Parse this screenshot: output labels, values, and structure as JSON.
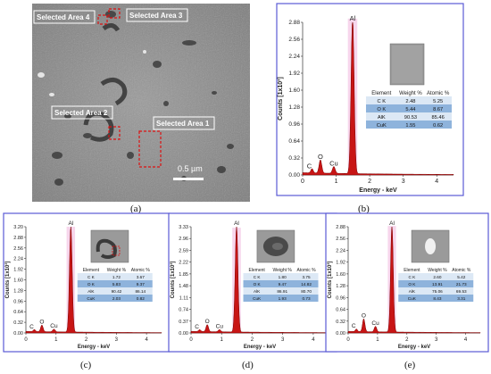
{
  "figure": {
    "labels": [
      "(a)",
      "(b)",
      "(c)",
      "(d)",
      "(e)"
    ]
  },
  "sem": {
    "areas": [
      "Selected Area 4",
      "Selected Area 3",
      "Selected Area 2",
      "Selected Area 1"
    ],
    "scale_label": "0.5 µm"
  },
  "spectra_common": {
    "xlabel": "Energy - keV",
    "ylabel": "Counts [1x10³]",
    "table_headers": [
      "Element",
      "Weight %",
      "Atomic %"
    ],
    "peak_labels": [
      "C",
      "O",
      "Cu",
      "Al"
    ]
  },
  "chart_data": [
    {
      "type": "area",
      "panel": "(b)",
      "ylim": [
        0,
        2.88
      ],
      "yticks": [
        "0.00",
        "0.32",
        "0.64",
        "0.96",
        "1.28",
        "1.60",
        "1.92",
        "2.24",
        "2.56",
        "2.88"
      ],
      "xlim": [
        0,
        4.5
      ],
      "xticks": [
        "0",
        "1",
        "2",
        "3",
        "4"
      ],
      "peaks": [
        {
          "label": "C",
          "x": 0.28,
          "y": 0.08
        },
        {
          "label": "O",
          "x": 0.53,
          "y": 0.25
        },
        {
          "label": "Cu",
          "x": 0.93,
          "y": 0.13
        },
        {
          "label": "Al",
          "x": 1.49,
          "y": 2.95
        }
      ],
      "table": [
        [
          "C K",
          "2.48",
          "5.25"
        ],
        [
          "O K",
          "5.44",
          "8.67"
        ],
        [
          "AlK",
          "90.53",
          "85.46"
        ],
        [
          "CuK",
          "1.55",
          "0.62"
        ]
      ]
    },
    {
      "type": "area",
      "panel": "(c)",
      "ylim": [
        0,
        3.2
      ],
      "yticks": [
        "0.00",
        "0.32",
        "0.64",
        "0.96",
        "1.28",
        "1.60",
        "1.92",
        "2.24",
        "2.56",
        "2.88",
        "3.20"
      ],
      "xlim": [
        0,
        4.5
      ],
      "xticks": [
        "0",
        "1",
        "2",
        "3",
        "4"
      ],
      "peaks": [
        {
          "label": "C",
          "x": 0.28,
          "y": 0.06
        },
        {
          "label": "O",
          "x": 0.53,
          "y": 0.2
        },
        {
          "label": "Cu",
          "x": 0.93,
          "y": 0.08
        },
        {
          "label": "Al",
          "x": 1.49,
          "y": 3.2
        }
      ],
      "table": [
        [
          "C K",
          "1.72",
          "3.67"
        ],
        [
          "O K",
          "5.83",
          "9.37"
        ],
        [
          "AlK",
          "90.42",
          "86.14"
        ],
        [
          "CuK",
          "2.03",
          "0.82"
        ]
      ]
    },
    {
      "type": "area",
      "panel": "(d)",
      "ylim": [
        0,
        3.33
      ],
      "yticks": [
        "0.00",
        "0.37",
        "0.74",
        "1.11",
        "1.48",
        "1.85",
        "2.22",
        "2.59",
        "2.96",
        "3.33"
      ],
      "xlim": [
        0,
        4.5
      ],
      "xticks": [
        "0",
        "1",
        "2",
        "3",
        "4"
      ],
      "peaks": [
        {
          "label": "C",
          "x": 0.28,
          "y": 0.06
        },
        {
          "label": "O",
          "x": 0.53,
          "y": 0.22
        },
        {
          "label": "Cu",
          "x": 0.93,
          "y": 0.07
        },
        {
          "label": "Al",
          "x": 1.49,
          "y": 3.3
        }
      ],
      "table": [
        [
          "C K",
          "1.80",
          "3.75"
        ],
        [
          "O K",
          "9.47",
          "14.82"
        ],
        [
          "AlK",
          "86.91",
          "80.70"
        ],
        [
          "CuK",
          "1.93",
          "0.73"
        ]
      ]
    },
    {
      "type": "area",
      "panel": "(e)",
      "ylim": [
        0,
        2.88
      ],
      "yticks": [
        "0.00",
        "0.32",
        "0.64",
        "0.96",
        "1.28",
        "1.60",
        "1.92",
        "2.24",
        "2.56",
        "2.88"
      ],
      "xlim": [
        0,
        4.5
      ],
      "xticks": [
        "0",
        "1",
        "2",
        "3",
        "4"
      ],
      "peaks": [
        {
          "label": "C",
          "x": 0.28,
          "y": 0.07
        },
        {
          "label": "O",
          "x": 0.53,
          "y": 0.35
        },
        {
          "label": "Cu",
          "x": 0.93,
          "y": 0.15
        },
        {
          "label": "Al",
          "x": 1.49,
          "y": 2.9
        }
      ],
      "table": [
        [
          "C K",
          "2.60",
          "5.42"
        ],
        [
          "O K",
          "13.91",
          "21.73"
        ],
        [
          "AlK",
          "75.06",
          "69.53"
        ],
        [
          "CuK",
          "8.43",
          "3.31"
        ]
      ]
    }
  ],
  "colors": {
    "frame": "#5b5bd6",
    "spectrum_fill": "#c81515",
    "spectrum_halo": "#f4c4e4",
    "table_header": "#ffffff",
    "table_row_dark": "#8eb3dc",
    "table_row_light": "#dce8f5",
    "sem_base": "#8d8d8d"
  }
}
